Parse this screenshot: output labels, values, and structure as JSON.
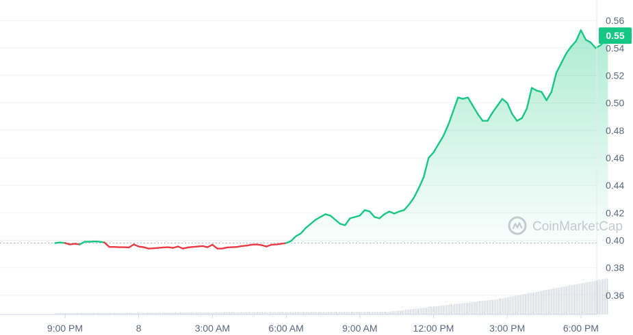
{
  "watermark": "CoinMarketCap",
  "current_price_label": "0.55",
  "colors": {
    "up": "#16c784",
    "down": "#ea3943",
    "volume": "#cfd4dc",
    "grid": "#eff2f5",
    "axis_text": "#58667e",
    "badge": "#16c784"
  },
  "chart_data": {
    "type": "area",
    "title": "",
    "xlabel": "",
    "ylabel": "",
    "ylim": [
      0.346,
      0.568
    ],
    "xlim": [
      -3.4,
      21.3
    ],
    "x_unit": "hours since 12:00 AM of the 8th",
    "y_ticks": [
      "0.56",
      "0.54",
      "0.52",
      "0.50",
      "0.48",
      "0.46",
      "0.44",
      "0.42",
      "0.40",
      "0.38",
      "0.36"
    ],
    "x_ticks": [
      {
        "x": -3,
        "label": "9:00 PM"
      },
      {
        "x": 0,
        "label": "8"
      },
      {
        "x": 3,
        "label": "3:00 AM"
      },
      {
        "x": 6,
        "label": "6:00 AM"
      },
      {
        "x": 9,
        "label": "9:00 AM"
      },
      {
        "x": 12,
        "label": "12:00 PM"
      },
      {
        "x": 15,
        "label": "3:00 PM"
      },
      {
        "x": 18,
        "label": "6:00 PM"
      }
    ],
    "reference_price": 0.398,
    "current_price": 0.549,
    "grid": true,
    "series": [
      {
        "points": [
          [
            -3.4,
            0.398
          ],
          [
            -3.2,
            0.3985
          ],
          [
            -3.0,
            0.398
          ],
          [
            -2.8,
            0.397
          ],
          [
            -2.6,
            0.3975
          ],
          [
            -2.4,
            0.397
          ],
          [
            -2.2,
            0.399
          ],
          [
            -2.0,
            0.399
          ],
          [
            -1.8,
            0.3992
          ],
          [
            -1.6,
            0.399
          ],
          [
            -1.4,
            0.3985
          ],
          [
            -1.2,
            0.3952
          ],
          [
            -1.0,
            0.3952
          ],
          [
            -0.8,
            0.395
          ],
          [
            -0.6,
            0.395
          ],
          [
            -0.4,
            0.3948
          ],
          [
            -0.2,
            0.397
          ],
          [
            0.0,
            0.3955
          ],
          [
            0.2,
            0.395
          ],
          [
            0.4,
            0.394
          ],
          [
            0.6,
            0.3942
          ],
          [
            0.8,
            0.3945
          ],
          [
            1.0,
            0.3948
          ],
          [
            1.2,
            0.395
          ],
          [
            1.4,
            0.3945
          ],
          [
            1.6,
            0.3955
          ],
          [
            1.8,
            0.394
          ],
          [
            2.0,
            0.3948
          ],
          [
            2.2,
            0.3952
          ],
          [
            2.4,
            0.3955
          ],
          [
            2.6,
            0.3958
          ],
          [
            2.8,
            0.395
          ],
          [
            3.0,
            0.3968
          ],
          [
            3.2,
            0.394
          ],
          [
            3.4,
            0.394
          ],
          [
            3.6,
            0.3948
          ],
          [
            3.8,
            0.395
          ],
          [
            4.0,
            0.3952
          ],
          [
            4.2,
            0.3958
          ],
          [
            4.4,
            0.3962
          ],
          [
            4.6,
            0.3968
          ],
          [
            4.8,
            0.397
          ],
          [
            5.0,
            0.3965
          ],
          [
            5.2,
            0.3955
          ],
          [
            5.4,
            0.3968
          ],
          [
            5.6,
            0.397
          ],
          [
            5.8,
            0.3975
          ],
          [
            6.0,
            0.398
          ],
          [
            6.2,
            0.3995
          ],
          [
            6.4,
            0.403
          ],
          [
            6.6,
            0.405
          ],
          [
            6.8,
            0.409
          ],
          [
            7.0,
            0.412
          ],
          [
            7.2,
            0.415
          ],
          [
            7.4,
            0.417
          ],
          [
            7.6,
            0.419
          ],
          [
            7.8,
            0.418
          ],
          [
            8.0,
            0.415
          ],
          [
            8.2,
            0.412
          ],
          [
            8.4,
            0.411
          ],
          [
            8.6,
            0.416
          ],
          [
            8.8,
            0.417
          ],
          [
            9.0,
            0.418
          ],
          [
            9.2,
            0.422
          ],
          [
            9.4,
            0.421
          ],
          [
            9.6,
            0.417
          ],
          [
            9.8,
            0.416
          ],
          [
            10.0,
            0.419
          ],
          [
            10.2,
            0.421
          ],
          [
            10.4,
            0.4195
          ],
          [
            10.6,
            0.421
          ],
          [
            10.8,
            0.422
          ],
          [
            11.0,
            0.426
          ],
          [
            11.2,
            0.431
          ],
          [
            11.4,
            0.438
          ],
          [
            11.6,
            0.446
          ],
          [
            11.8,
            0.46
          ],
          [
            12.0,
            0.464
          ],
          [
            12.2,
            0.47
          ],
          [
            12.4,
            0.476
          ],
          [
            12.6,
            0.484
          ],
          [
            12.8,
            0.494
          ],
          [
            13.0,
            0.504
          ],
          [
            13.2,
            0.503
          ],
          [
            13.4,
            0.504
          ],
          [
            13.6,
            0.498
          ],
          [
            13.8,
            0.492
          ],
          [
            14.0,
            0.487
          ],
          [
            14.2,
            0.487
          ],
          [
            14.4,
            0.493
          ],
          [
            14.6,
            0.498
          ],
          [
            14.8,
            0.503
          ],
          [
            15.0,
            0.5
          ],
          [
            15.2,
            0.492
          ],
          [
            15.4,
            0.487
          ],
          [
            15.6,
            0.489
          ],
          [
            15.8,
            0.496
          ],
          [
            16.0,
            0.511
          ],
          [
            16.2,
            0.509
          ],
          [
            16.4,
            0.508
          ],
          [
            16.6,
            0.502
          ],
          [
            16.8,
            0.508
          ],
          [
            17.0,
            0.522
          ],
          [
            17.2,
            0.529
          ],
          [
            17.4,
            0.536
          ],
          [
            17.6,
            0.541
          ],
          [
            17.8,
            0.545
          ],
          [
            18.0,
            0.553
          ],
          [
            18.2,
            0.546
          ],
          [
            18.4,
            0.544
          ],
          [
            18.6,
            0.54
          ],
          [
            18.8,
            0.542
          ],
          [
            19.0,
            0.546
          ],
          [
            19.1,
            0.549
          ]
        ]
      }
    ]
  }
}
